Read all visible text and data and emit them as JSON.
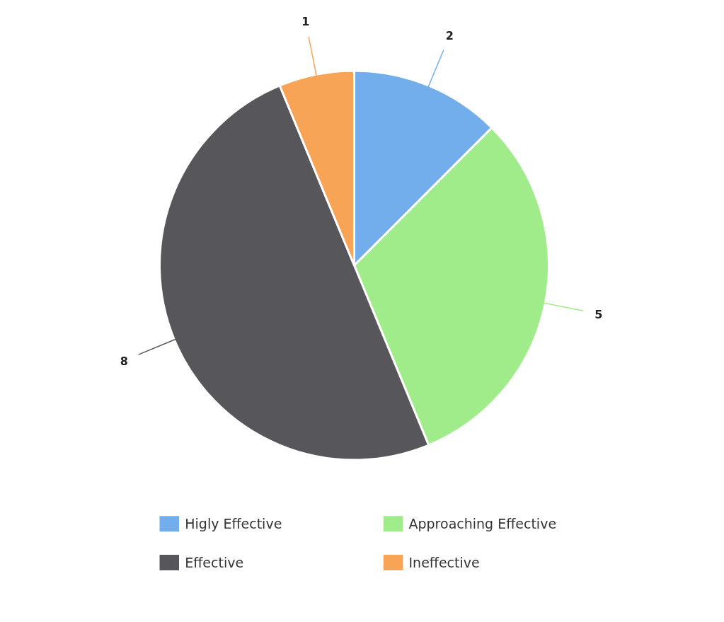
{
  "chart_data": {
    "type": "pie",
    "categories": [
      "Higly Effective",
      "Approaching Effective",
      "Effective",
      "Ineffective"
    ],
    "values": [
      2,
      5,
      8,
      1
    ],
    "colors": [
      "#72aeec",
      "#a1ec8a",
      "#56565b",
      "#f8a456"
    ],
    "data_labels": true,
    "legend": "bottom"
  }
}
